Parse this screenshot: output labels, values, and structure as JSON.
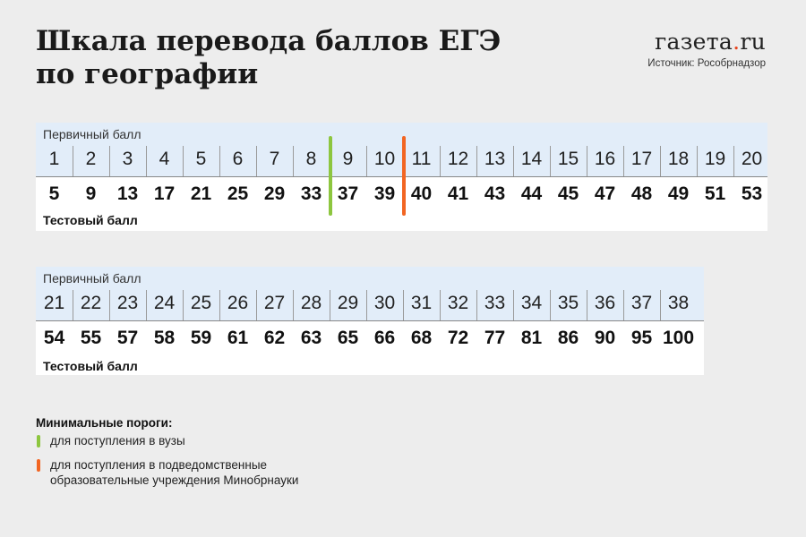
{
  "header": {
    "title_line1": "Шкала перевода баллов ЕГЭ",
    "title_line2": "по географии",
    "logo_main": "газета",
    "logo_dot": ".",
    "logo_tld": "ru",
    "source": "Источник: Рособрнадзор"
  },
  "table1": {
    "label_primary": "Первичный балл",
    "label_test": "Тестовый балл",
    "cells": [
      {
        "p": "1",
        "t": "5"
      },
      {
        "p": "2",
        "t": "9"
      },
      {
        "p": "3",
        "t": "13"
      },
      {
        "p": "4",
        "t": "17"
      },
      {
        "p": "5",
        "t": "21"
      },
      {
        "p": "6",
        "t": "25"
      },
      {
        "p": "7",
        "t": "29"
      },
      {
        "p": "8",
        "t": "33"
      },
      {
        "p": "9",
        "t": "37"
      },
      {
        "p": "10",
        "t": "39"
      },
      {
        "p": "11",
        "t": "40"
      },
      {
        "p": "12",
        "t": "41"
      },
      {
        "p": "13",
        "t": "43"
      },
      {
        "p": "14",
        "t": "44"
      },
      {
        "p": "15",
        "t": "45"
      },
      {
        "p": "16",
        "t": "47"
      },
      {
        "p": "17",
        "t": "48"
      },
      {
        "p": "18",
        "t": "49"
      },
      {
        "p": "19",
        "t": "51"
      },
      {
        "p": "20",
        "t": "53"
      }
    ]
  },
  "table2": {
    "label_primary": "Первичный балл",
    "label_test": "Тестовый балл",
    "cells": [
      {
        "p": "21",
        "t": "54"
      },
      {
        "p": "22",
        "t": "55"
      },
      {
        "p": "23",
        "t": "57"
      },
      {
        "p": "24",
        "t": "58"
      },
      {
        "p": "25",
        "t": "59"
      },
      {
        "p": "26",
        "t": "61"
      },
      {
        "p": "27",
        "t": "62"
      },
      {
        "p": "28",
        "t": "63"
      },
      {
        "p": "29",
        "t": "65"
      },
      {
        "p": "30",
        "t": "66"
      },
      {
        "p": "31",
        "t": "68"
      },
      {
        "p": "32",
        "t": "72"
      },
      {
        "p": "33",
        "t": "77"
      },
      {
        "p": "34",
        "t": "81"
      },
      {
        "p": "35",
        "t": "86"
      },
      {
        "p": "36",
        "t": "90"
      },
      {
        "p": "37",
        "t": "95"
      },
      {
        "p": "38",
        "t": "100"
      }
    ]
  },
  "legend": {
    "title": "Минимальные пороги:",
    "items": [
      {
        "text": "для поступления в вузы",
        "color": "#8dc63f"
      },
      {
        "text_line1": "для поступления в подведомственные",
        "text_line2": "образовательные учреждения Минобрнауки",
        "color": "#f26522"
      }
    ]
  },
  "colors": {
    "university_threshold": "#8dc63f",
    "ministry_threshold": "#f26522",
    "header_band": "#e2edf9"
  }
}
